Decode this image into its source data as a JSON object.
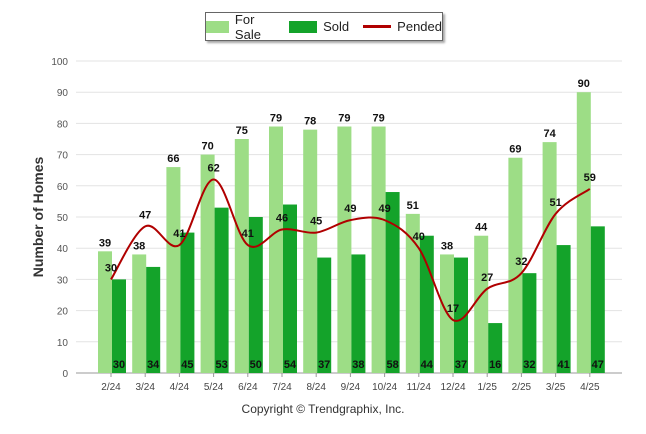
{
  "chart_data": {
    "type": "bar",
    "categories": [
      "2/24",
      "3/24",
      "4/24",
      "5/24",
      "6/24",
      "7/24",
      "8/24",
      "9/24",
      "10/24",
      "11/24",
      "12/24",
      "1/25",
      "2/25",
      "3/25",
      "4/25"
    ],
    "series": [
      {
        "name": "For Sale",
        "type": "bar",
        "color": "#9ddd86",
        "values": [
          39,
          38,
          66,
          70,
          75,
          79,
          78,
          79,
          79,
          51,
          38,
          44,
          69,
          74,
          90
        ]
      },
      {
        "name": "Sold",
        "type": "bar",
        "color": "#14a32a",
        "values": [
          30,
          34,
          45,
          53,
          50,
          54,
          37,
          38,
          58,
          44,
          37,
          16,
          32,
          41,
          47
        ]
      },
      {
        "name": "Pended",
        "type": "line",
        "color": "#b00000",
        "values": [
          30,
          47,
          41,
          62,
          41,
          46,
          45,
          49,
          49,
          40,
          17,
          27,
          32,
          51,
          59
        ]
      }
    ],
    "ylabel": "Number of Homes",
    "xlabel": "",
    "ylim": [
      0,
      100
    ],
    "yticks": [
      0,
      10,
      20,
      30,
      40,
      50,
      60,
      70,
      80,
      90,
      100
    ],
    "grid": true,
    "legend_position": "top-center"
  },
  "footer": {
    "copyright": "Copyright © Trendgraphix, Inc."
  }
}
